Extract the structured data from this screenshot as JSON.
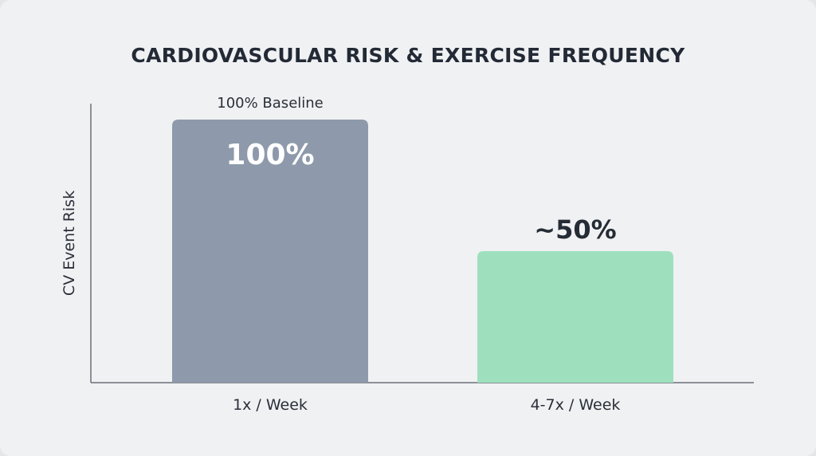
{
  "chart_data": {
    "type": "bar",
    "title": "CARDIOVASCULAR RISK & EXERCISE FREQUENCY",
    "xlabel": "",
    "ylabel": "CV Event Risk",
    "categories": [
      "1x / Week",
      "4-7x / Week"
    ],
    "values": [
      100,
      50
    ],
    "data_labels": [
      "100%",
      "~50%"
    ],
    "annotations": [
      "100% Baseline"
    ],
    "ylim": [
      0,
      100
    ],
    "grid": false,
    "colors": [
      "#8e9aab",
      "#9ee0be"
    ]
  }
}
